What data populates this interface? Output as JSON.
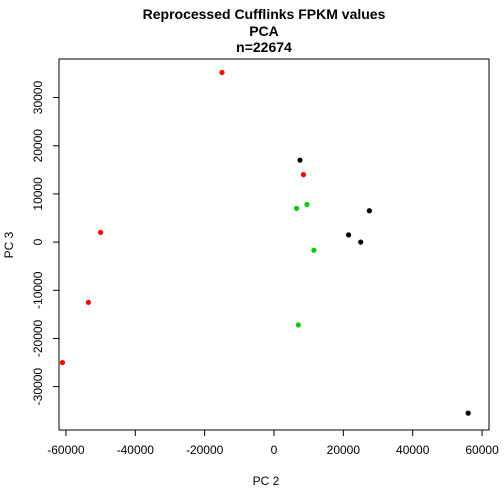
{
  "chart_data": {
    "type": "scatter",
    "title_lines": [
      "Reprocessed Cufflinks FPKM values",
      "PCA",
      "n=22674"
    ],
    "xlabel": "PC 2",
    "ylabel": "PC 3",
    "xlim": [
      -62000,
      62000
    ],
    "ylim": [
      -39000,
      38000
    ],
    "xticks": [
      -60000,
      -40000,
      -20000,
      0,
      20000,
      40000,
      60000
    ],
    "xtick_labels": [
      "-60000",
      "-40000",
      "-20000",
      "0",
      "20000",
      "40000",
      "60000"
    ],
    "yticks": [
      -30000,
      -20000,
      -10000,
      0,
      10000,
      20000,
      30000
    ],
    "ytick_labels": [
      "-30000",
      "-20000",
      "-10000",
      "0",
      "10000",
      "20000",
      "30000"
    ],
    "grid": false,
    "colors": {
      "red": "#ff0000",
      "green": "#00cc00",
      "black": "#000000"
    },
    "points": [
      {
        "x": -15000,
        "y": 35200,
        "color": "red"
      },
      {
        "x": 8500,
        "y": 14000,
        "color": "red"
      },
      {
        "x": -50000,
        "y": 2000,
        "color": "red"
      },
      {
        "x": -53500,
        "y": -12500,
        "color": "red"
      },
      {
        "x": -61000,
        "y": -25000,
        "color": "red"
      },
      {
        "x": 7500,
        "y": 17000,
        "color": "black"
      },
      {
        "x": 27500,
        "y": 6500,
        "color": "black"
      },
      {
        "x": 21500,
        "y": 1500,
        "color": "black"
      },
      {
        "x": 25000,
        "y": 0,
        "color": "black"
      },
      {
        "x": 56000,
        "y": -35500,
        "color": "black"
      },
      {
        "x": 6500,
        "y": 7000,
        "color": "green"
      },
      {
        "x": 9500,
        "y": 7800,
        "color": "green"
      },
      {
        "x": 11500,
        "y": -1700,
        "color": "green"
      },
      {
        "x": 7000,
        "y": -17200,
        "color": "green"
      }
    ]
  }
}
